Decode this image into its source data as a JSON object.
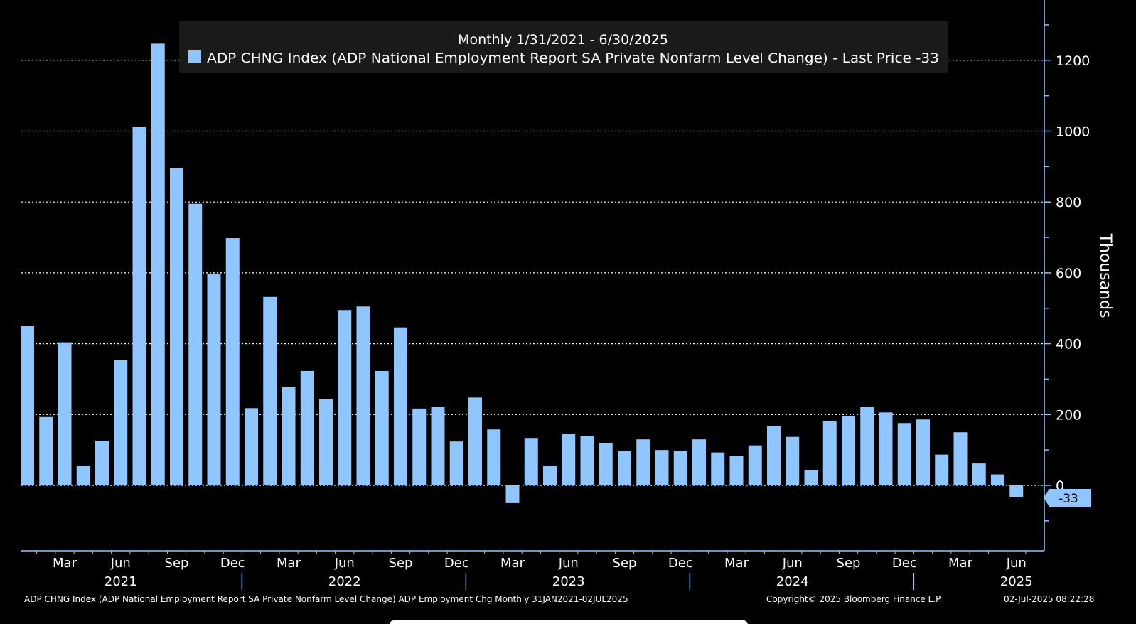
{
  "chart_data": {
    "type": "bar",
    "title": "Monthly 1/31/2021 - 6/30/2025",
    "legend": {
      "label": "ADP CHNG Index (ADP National Employment Report SA Private Nonfarm Level Change) - Last Price -33",
      "placement": "top-center"
    },
    "ylabel": "Thousands",
    "ylim": [
      -185,
      1340
    ],
    "yticks": [
      "1200",
      "1000",
      "800",
      "600",
      "400",
      "200",
      "0"
    ],
    "y_tick_values": [
      1200,
      1000,
      800,
      600,
      400,
      200,
      0
    ],
    "grid": "horizontal-dotted",
    "y_axis_position": "right",
    "last_value_label": "-33",
    "categories": [
      "2021-01",
      "2021-02",
      "2021-03",
      "2021-04",
      "2021-05",
      "2021-06",
      "2021-07",
      "2021-08",
      "2021-09",
      "2021-10",
      "2021-11",
      "2021-12",
      "2022-01",
      "2022-02",
      "2022-03",
      "2022-04",
      "2022-05",
      "2022-06",
      "2022-07",
      "2022-08",
      "2022-09",
      "2022-10",
      "2022-11",
      "2022-12",
      "2023-01",
      "2023-02",
      "2023-03",
      "2023-04",
      "2023-05",
      "2023-06",
      "2023-07",
      "2023-08",
      "2023-09",
      "2023-10",
      "2023-11",
      "2023-12",
      "2024-01",
      "2024-02",
      "2024-03",
      "2024-04",
      "2024-05",
      "2024-06",
      "2024-07",
      "2024-08",
      "2024-09",
      "2024-10",
      "2024-11",
      "2024-12",
      "2025-01",
      "2025-02",
      "2025-03",
      "2025-04",
      "2025-05",
      "2025-06"
    ],
    "values": [
      450,
      193,
      404,
      55,
      126,
      353,
      1012,
      1247,
      895,
      795,
      598,
      698,
      218,
      532,
      278,
      323,
      244,
      495,
      505,
      323,
      446,
      217,
      222,
      124,
      248,
      158,
      -50,
      134,
      55,
      145,
      140,
      120,
      98,
      130,
      100,
      98,
      130,
      93,
      83,
      113,
      167,
      137,
      43,
      182,
      195,
      222,
      206,
      176,
      186,
      87,
      150,
      62,
      31,
      -33
    ],
    "x_month_labels": [
      "Mar",
      "Jun",
      "Sep",
      "Dec",
      "Mar",
      "Jun",
      "Sep",
      "Dec",
      "Mar",
      "Jun",
      "Sep",
      "Dec",
      "Mar",
      "Jun",
      "Sep",
      "Dec",
      "Mar",
      "Jun"
    ],
    "x_month_label_indices": [
      2,
      5,
      8,
      11,
      14,
      17,
      20,
      23,
      26,
      29,
      32,
      35,
      38,
      41,
      44,
      47,
      50,
      53
    ],
    "x_year_labels": [
      "2021",
      "2022",
      "2023",
      "2024",
      "2025"
    ],
    "x_year_label_indices": [
      5,
      17,
      29,
      41,
      53
    ],
    "colors": {
      "bar": "#8fc6ff",
      "background": "#000000",
      "text": "#ffffff",
      "axis": "#8fc6ff",
      "grid": "#ffffff",
      "legend_box": "#1a1a1a"
    }
  },
  "footer": {
    "left": "ADP CHNG Index (ADP National Employment Report SA Private Nonfarm Level Change) ADP Employment Chg  Monthly 31JAN2021-02JUL2025",
    "copyright": "Copyright© 2025 Bloomberg Finance L.P.",
    "timestamp": "02-Jul-2025 08:22:28"
  }
}
